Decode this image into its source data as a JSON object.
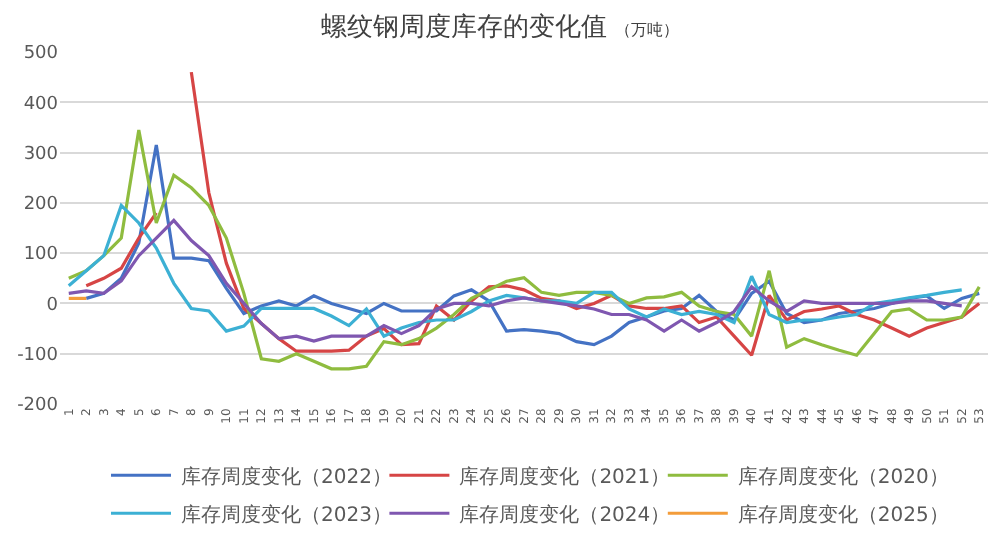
{
  "chart_data": {
    "type": "line",
    "title": "螺纹钢周度库存的变化值",
    "subtitle": "（万吨）",
    "categories": [
      "1",
      "2",
      "3",
      "4",
      "5",
      "6",
      "7",
      "8",
      "9",
      "10",
      "11",
      "12",
      "13",
      "14",
      "15",
      "16",
      "17",
      "18",
      "19",
      "20",
      "21",
      "22",
      "23",
      "24",
      "25",
      "26",
      "27",
      "28",
      "29",
      "30",
      "31",
      "32",
      "33",
      "34",
      "35",
      "36",
      "37",
      "38",
      "39",
      "40",
      "41",
      "42",
      "43",
      "44",
      "45",
      "46",
      "47",
      "48",
      "49",
      "50",
      "51",
      "52",
      "53"
    ],
    "ylim": [
      -200,
      500
    ],
    "yticks": [
      -200,
      -100,
      0,
      100,
      200,
      300,
      400,
      500
    ],
    "grid": "y",
    "legend": "bottom",
    "marker": "none",
    "line_style": "solid",
    "series": [
      {
        "name": "库存周度变化（2022）",
        "color": "#4472c4",
        "values": [
          null,
          10,
          20,
          50,
          120,
          315,
          90,
          90,
          85,
          30,
          -20,
          -5,
          5,
          -5,
          15,
          0,
          -10,
          -20,
          0,
          -15,
          -15,
          -15,
          15,
          27,
          5,
          -55,
          -52,
          -55,
          -60,
          -76,
          -82,
          -65,
          -38,
          -27,
          -15,
          -10,
          16,
          -16,
          -33,
          20,
          44,
          -20,
          -38,
          -33,
          -20,
          -15,
          -10,
          0,
          10,
          15,
          -10,
          10,
          20
        ]
      },
      {
        "name": "库存周度变化（2021）",
        "color": "#d64545",
        "values": [
          null,
          35,
          50,
          70,
          130,
          180,
          null,
          460,
          220,
          80,
          -10,
          -40,
          -70,
          -95,
          -95,
          -95,
          -93,
          -65,
          -50,
          -82,
          -80,
          -5,
          -33,
          5,
          33,
          35,
          27,
          10,
          5,
          -10,
          0,
          16,
          -5,
          -10,
          -10,
          -5,
          -38,
          -27,
          -65,
          -103,
          16,
          -33,
          -16,
          -11,
          -5,
          -22,
          -33,
          -49,
          -65,
          -49,
          -38,
          -27,
          0
        ]
      },
      {
        "name": "库存周度变化（2020）",
        "color": "#8fbc3f",
        "values": [
          50,
          65,
          95,
          130,
          345,
          160,
          255,
          230,
          195,
          130,
          20,
          -110,
          -115,
          -100,
          -115,
          -130,
          -130,
          -125,
          -76,
          -82,
          -70,
          -49,
          -22,
          10,
          27,
          44,
          51,
          22,
          16,
          22,
          22,
          16,
          0,
          11,
          13,
          22,
          -5,
          -16,
          -22,
          -65,
          65,
          -87,
          -70,
          -82,
          -93,
          -103,
          -60,
          -16,
          -11,
          -33,
          -33,
          -27,
          33
        ]
      },
      {
        "name": "库存周度变化（2023）",
        "color": "#3cb0d4",
        "values": [
          35,
          65,
          95,
          195,
          160,
          110,
          40,
          -10,
          -15,
          -55,
          -45,
          -10,
          -10,
          -10,
          -10,
          -25,
          -44,
          -11,
          -65,
          -49,
          -38,
          -33,
          -33,
          -16,
          5,
          16,
          11,
          5,
          5,
          0,
          22,
          22,
          -11,
          -27,
          -11,
          -22,
          -16,
          -22,
          -38,
          54,
          -22,
          -38,
          -33,
          -33,
          -27,
          -22,
          0,
          5,
          11,
          16,
          22,
          27,
          null
        ]
      },
      {
        "name": "库存周度变化（2024）",
        "color": "#7f57b0",
        "values": [
          20,
          25,
          20,
          45,
          95,
          130,
          165,
          125,
          95,
          40,
          0,
          -40,
          -70,
          -65,
          -75,
          -65,
          -65,
          -65,
          -44,
          -60,
          -44,
          -11,
          0,
          0,
          -5,
          5,
          11,
          5,
          0,
          -5,
          -11,
          -22,
          -22,
          -33,
          -55,
          -33,
          -55,
          -38,
          -16,
          33,
          5,
          -16,
          5,
          0,
          0,
          0,
          0,
          0,
          5,
          5,
          0,
          -5,
          null
        ]
      },
      {
        "name": "库存周度变化（2025）",
        "color": "#f39c3a",
        "values": [
          10,
          10,
          null,
          null,
          null,
          null,
          null,
          null,
          null,
          null,
          null,
          null,
          null,
          null,
          null,
          null,
          null,
          null,
          null,
          null,
          null,
          null,
          null,
          null,
          null,
          null,
          null,
          null,
          null,
          null,
          null,
          null,
          null,
          null,
          null,
          null,
          null,
          null,
          null,
          null,
          null,
          null,
          null,
          null,
          null,
          null,
          null,
          null,
          null,
          null,
          null,
          null,
          null
        ]
      }
    ]
  }
}
